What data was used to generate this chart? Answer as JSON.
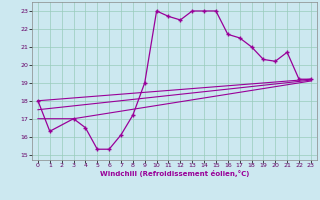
{
  "xlabel": "Windchill (Refroidissement éolien,°C)",
  "bg_color": "#cce8f0",
  "line_color": "#990099",
  "grid_color": "#99ccbb",
  "xlim": [
    -0.5,
    23.5
  ],
  "ylim": [
    14.7,
    23.5
  ],
  "yticks": [
    15,
    16,
    17,
    18,
    19,
    20,
    21,
    22,
    23
  ],
  "xticks": [
    0,
    1,
    2,
    3,
    4,
    5,
    6,
    7,
    8,
    9,
    10,
    11,
    12,
    13,
    14,
    15,
    16,
    17,
    18,
    19,
    20,
    21,
    22,
    23
  ],
  "curve_x": [
    0,
    1,
    3,
    4,
    5,
    6,
    7,
    8,
    9,
    10,
    11,
    12,
    13,
    14,
    15,
    16,
    17,
    18,
    19,
    20,
    21,
    22,
    23
  ],
  "curve_y": [
    18.0,
    16.3,
    17.0,
    16.5,
    15.3,
    15.3,
    16.1,
    17.2,
    19.0,
    23.0,
    22.7,
    22.5,
    23.0,
    23.0,
    23.0,
    21.7,
    21.5,
    21.0,
    20.3,
    20.2,
    20.7,
    19.2,
    19.2
  ],
  "line1_x": [
    0,
    23
  ],
  "line1_y": [
    18.0,
    19.2
  ],
  "line2_x": [
    0,
    23
  ],
  "line2_y": [
    17.5,
    19.15
  ],
  "line3_x": [
    0,
    3,
    23
  ],
  "line3_y": [
    17.0,
    17.0,
    19.1
  ]
}
